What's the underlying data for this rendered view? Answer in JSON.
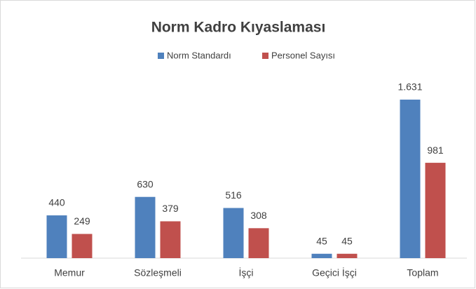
{
  "chart_data": {
    "type": "bar",
    "title": "Norm Kadro Kıyaslaması",
    "categories": [
      "Memur",
      "Sözleşmeli",
      "İşçi",
      "Geçici İşçi",
      "Toplam"
    ],
    "series": [
      {
        "name": "Norm Standardı",
        "color": "#4f81bd",
        "values": [
          440,
          630,
          516,
          45,
          1631
        ],
        "value_labels": [
          "440",
          "630",
          "516",
          "45",
          "1.631"
        ]
      },
      {
        "name": "Personel Sayısı",
        "color": "#c0504d",
        "values": [
          249,
          379,
          308,
          45,
          981
        ]
      }
    ],
    "ylim": [
      0,
      1800
    ],
    "grid": false,
    "legend": "top"
  }
}
